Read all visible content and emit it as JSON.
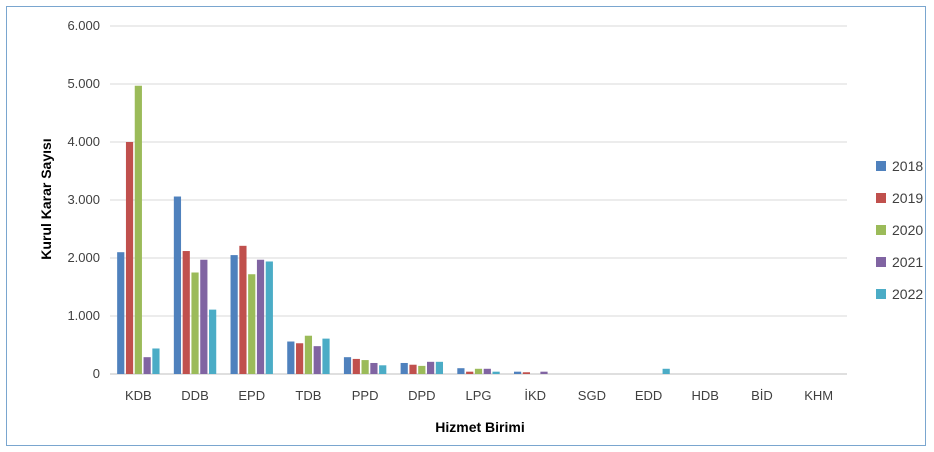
{
  "chart_data": {
    "type": "bar",
    "xlabel": "Hizmet Birimi",
    "ylabel": "Kurul Karar Sayısı",
    "ylim": [
      0,
      6000
    ],
    "yticks": [
      0,
      1000,
      2000,
      3000,
      4000,
      5000,
      6000
    ],
    "ytick_labels": [
      "0",
      "1.000",
      "2.000",
      "3.000",
      "4.000",
      "5.000",
      "6.000"
    ],
    "grid": true,
    "legend_position": "right",
    "categories": [
      "KDB",
      "DDB",
      "EPD",
      "TDB",
      "PPD",
      "DPD",
      "LPG",
      "İKD",
      "SGD",
      "EDD",
      "HDB",
      "BİD",
      "KHM"
    ],
    "series": [
      {
        "name": "2018",
        "color": "#4f81bd",
        "values": [
          2100,
          3060,
          2050,
          560,
          290,
          190,
          100,
          40,
          0,
          0,
          0,
          0,
          0
        ]
      },
      {
        "name": "2019",
        "color": "#c0504d",
        "values": [
          4000,
          2120,
          2210,
          530,
          260,
          160,
          40,
          30,
          0,
          0,
          0,
          0,
          0
        ]
      },
      {
        "name": "2020",
        "color": "#9bbb59",
        "values": [
          4970,
          1750,
          1720,
          660,
          240,
          140,
          90,
          0,
          0,
          0,
          0,
          0,
          0
        ]
      },
      {
        "name": "2021",
        "color": "#8064a2",
        "values": [
          290,
          1970,
          1970,
          480,
          190,
          210,
          90,
          40,
          0,
          0,
          0,
          0,
          0
        ]
      },
      {
        "name": "2022",
        "color": "#4bacc6",
        "values": [
          440,
          1110,
          1940,
          610,
          150,
          210,
          40,
          0,
          0,
          90,
          0,
          0,
          0
        ]
      }
    ]
  }
}
